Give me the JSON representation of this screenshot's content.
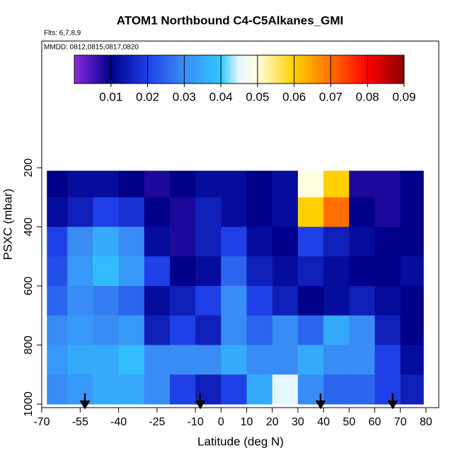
{
  "chart_data": {
    "type": "heatmap",
    "title": "ATOM1 Northbound C4-C5Alkanes_GMI",
    "subtitle": "Flts: 6,7,8,9",
    "annotation": "MMDD: 0812,0815,0817,0820",
    "x_label": "Latitude (deg N)",
    "y_label": "PSXC (mbar)",
    "xlim": [
      -70,
      85
    ],
    "ylim": [
      1012,
      -229
    ],
    "xticks": [
      -70,
      -55,
      -40,
      -25,
      -10,
      0,
      10,
      20,
      30,
      40,
      50,
      60,
      70,
      80
    ],
    "yticks": [
      200,
      400,
      600,
      800,
      1000
    ],
    "x_edges": [
      -68,
      -60,
      -50,
      -40,
      -30,
      -20,
      -10,
      0,
      10,
      20,
      30,
      40,
      50,
      60,
      70,
      79
    ],
    "y_edges": [
      210,
      300,
      400,
      500,
      600,
      700,
      800,
      900,
      1000
    ],
    "z": [
      [
        0.01,
        0.012,
        0.012,
        0.01,
        0.008,
        0.01,
        0.012,
        0.012,
        0.01,
        0.012,
        0.05,
        0.06,
        0.008,
        0.008,
        0.01
      ],
      [
        0.012,
        0.015,
        0.02,
        0.018,
        0.01,
        0.008,
        0.015,
        0.012,
        0.01,
        0.012,
        0.06,
        0.07,
        0.01,
        0.008,
        0.01
      ],
      [
        0.02,
        0.03,
        0.035,
        0.03,
        0.012,
        0.008,
        0.015,
        0.02,
        0.012,
        0.01,
        0.02,
        0.015,
        0.012,
        0.01,
        0.01
      ],
      [
        0.022,
        0.032,
        0.038,
        0.032,
        0.02,
        0.01,
        0.012,
        0.025,
        0.015,
        0.012,
        0.015,
        0.012,
        0.01,
        0.01,
        0.012
      ],
      [
        0.025,
        0.03,
        0.028,
        0.025,
        0.012,
        0.015,
        0.02,
        0.03,
        0.02,
        0.015,
        0.01,
        0.012,
        0.015,
        0.012,
        0.01
      ],
      [
        0.03,
        0.032,
        0.03,
        0.032,
        0.015,
        0.02,
        0.015,
        0.03,
        0.025,
        0.03,
        0.025,
        0.035,
        0.03,
        0.015,
        0.01
      ],
      [
        0.032,
        0.035,
        0.035,
        0.038,
        0.03,
        0.03,
        0.03,
        0.035,
        0.03,
        0.03,
        0.035,
        0.03,
        0.03,
        0.02,
        0.012
      ],
      [
        0.03,
        0.032,
        0.035,
        0.035,
        0.03,
        0.02,
        0.015,
        0.02,
        0.035,
        0.045,
        0.03,
        0.025,
        0.025,
        0.02,
        0.015
      ]
    ],
    "colorscale": [
      [
        0,
        "#8a2be2"
      ],
      [
        0.01,
        "#00008b"
      ],
      [
        0.02,
        "#1e40e6"
      ],
      [
        0.03,
        "#3a8cf5"
      ],
      [
        0.04,
        "#30c8ff"
      ],
      [
        0.045,
        "#e6f6ff"
      ],
      [
        0.05,
        "#ffffe0"
      ],
      [
        0.06,
        "#ffd000"
      ],
      [
        0.07,
        "#ff7000"
      ],
      [
        0.08,
        "#ff0000"
      ],
      [
        0.09,
        "#8b0000"
      ]
    ],
    "colorbar": {
      "lim": [
        0,
        0.09
      ],
      "ticks": [
        0.01,
        0.02,
        0.03,
        0.04,
        0.05,
        0.06,
        0.07,
        0.08,
        0.09
      ]
    }
  }
}
